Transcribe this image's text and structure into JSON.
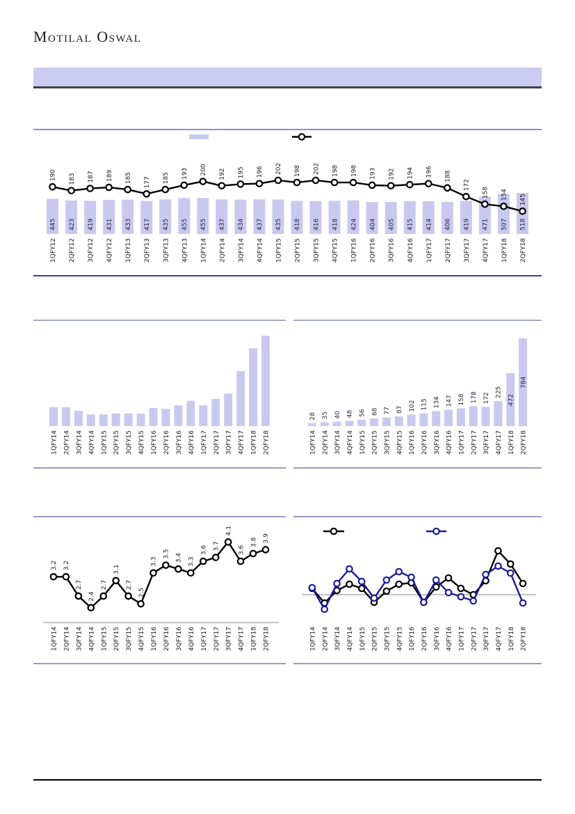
{
  "page": {
    "logo_text": "Motilal Oswal"
  },
  "banner": {
    "text": ""
  },
  "colors": {
    "bar_fill": "#c9c9f0",
    "bar_label_text": "#26263e",
    "line_black": "#000000",
    "line_navy": "#1b1b99",
    "axis_text": "#1a1a1a",
    "border_light": "#9a9ac8",
    "border_muted": "#a9a9c9",
    "border_dark": "#3e3e9e",
    "banner_fill": "#ccccf2",
    "banner_border": "#3f3f3f",
    "zero_line": "#8a8a8a",
    "footer_line": "#000000"
  },
  "chart_data": [
    {
      "id": "c1",
      "type": "bar+line",
      "title": "",
      "legend": [
        {
          "swatch": "bar",
          "label": ""
        },
        {
          "swatch": "line-marker",
          "label": ""
        }
      ],
      "legend_position": "top",
      "grid": false,
      "categories": [
        "1QFY12",
        "2QFY12",
        "3QFY12",
        "4QFY12",
        "1QFY13",
        "2QFY13",
        "3QFY13",
        "4QFY13",
        "1QFY14",
        "2QFY14",
        "3QFY14",
        "4QFY14",
        "1QFY15",
        "2QFY15",
        "3QFY15",
        "4QFY15",
        "1QFY16",
        "2QFY16",
        "3QFY16",
        "4QFY16",
        "1QFY17",
        "2QFY17",
        "3QFY17",
        "4QFY17",
        "1QFY18",
        "2QFY18"
      ],
      "series": [
        {
          "name": "bar-series",
          "type": "bar",
          "data_labels": true,
          "values": [
            445,
            423,
            419,
            431,
            433,
            417,
            435,
            455,
            455,
            437,
            434,
            437,
            435,
            418,
            416,
            418,
            424,
            404,
            405,
            415,
            414,
            406,
            419,
            471,
            507,
            518
          ]
        },
        {
          "name": "line-series",
          "type": "line",
          "data_labels": true,
          "values": [
            190,
            183,
            187,
            189,
            185,
            177,
            185,
            193,
            200,
            192,
            195,
            196,
            202,
            198,
            202,
            198,
            198,
            193,
            192,
            194,
            196,
            188,
            172,
            158,
            154,
            145
          ]
        }
      ]
    },
    {
      "id": "c2",
      "type": "bar",
      "title": "",
      "grid": false,
      "data_labels": false,
      "note": "no data labels shown; values are relative estimates from bar heights (max=100)",
      "categories": [
        "1QFY14",
        "2QFY14",
        "3QFY14",
        "4QFY14",
        "1QFY15",
        "2QFY15",
        "3QFY15",
        "4QFY15",
        "1QFY16",
        "2QFY16",
        "3QFY16",
        "4QFY16",
        "1QFY17",
        "2QFY17",
        "3QFY17",
        "4QFY17",
        "1QFY18",
        "2QFY18"
      ],
      "values": [
        21,
        21,
        17,
        13,
        13,
        14,
        14,
        14,
        20,
        19,
        23,
        28,
        23,
        30,
        36,
        61,
        86,
        100
      ]
    },
    {
      "id": "c3",
      "type": "bar",
      "title": "",
      "grid": false,
      "data_labels": true,
      "categories": [
        "1QFY14",
        "2QFY14",
        "3QFY14",
        "4QFY14",
        "1QFY15",
        "2QFY15",
        "3QFY15",
        "4QFY15",
        "1QFY16",
        "2QFY16",
        "3QFY16",
        "4QFY16",
        "1QFY17",
        "2QFY17",
        "3QFY17",
        "4QFY17",
        "1QFY18",
        "2QFY18"
      ],
      "values": [
        28,
        35,
        40,
        48,
        56,
        68,
        77,
        87,
        102,
        115,
        134,
        147,
        158,
        178,
        172,
        225,
        472,
        784
      ]
    },
    {
      "id": "c4",
      "type": "line",
      "title": "",
      "grid": false,
      "data_labels": true,
      "decimals": 1,
      "categories": [
        "1QFY14",
        "2QFY14",
        "3QFY14",
        "4QFY14",
        "1QFY15",
        "2QFY15",
        "3QFY15",
        "4QFY15",
        "1QFY16",
        "2QFY16",
        "3QFY16",
        "4QFY16",
        "1QFY17",
        "2QFY17",
        "3QFY17",
        "4QFY17",
        "1QFY18",
        "2QFY18"
      ],
      "values": [
        3.2,
        3.2,
        2.7,
        2.4,
        2.7,
        3.1,
        2.7,
        2.5,
        3.3,
        3.5,
        3.4,
        3.3,
        3.6,
        3.7,
        4.1,
        3.6,
        3.8,
        3.9
      ]
    },
    {
      "id": "c5",
      "type": "line",
      "title": "",
      "grid": false,
      "data_labels": false,
      "zero_line": true,
      "note": "no data labels shown; values are estimates read from pixel offsets vs the zero line",
      "legend": [
        {
          "swatch": "line-marker",
          "color_key": "line_black",
          "label": ""
        },
        {
          "swatch": "line-marker",
          "color_key": "line_navy",
          "label": ""
        }
      ],
      "legend_position": "top",
      "categories": [
        "1QFY14",
        "2QFY14",
        "3QFY14",
        "4QFY14",
        "1QFY15",
        "2QFY15",
        "3QFY15",
        "4QFY15",
        "1QFY16",
        "2QFY16",
        "3QFY16",
        "4QFY16",
        "1QFY17",
        "2QFY17",
        "3QFY17",
        "4QFY17",
        "1QFY18",
        "2QFY18"
      ],
      "series": [
        {
          "name": "black-series",
          "color_key": "line_black",
          "values": [
            9,
            -12,
            6,
            15,
            9,
            -11,
            5,
            15,
            17,
            -11,
            11,
            24,
            9,
            0,
            20,
            63,
            44,
            16
          ]
        },
        {
          "name": "navy-series",
          "color_key": "line_navy",
          "values": [
            10,
            -21,
            16,
            37,
            19,
            -5,
            21,
            33,
            25,
            -11,
            21,
            3,
            -3,
            -9,
            29,
            41,
            31,
            -12
          ]
        }
      ]
    }
  ]
}
